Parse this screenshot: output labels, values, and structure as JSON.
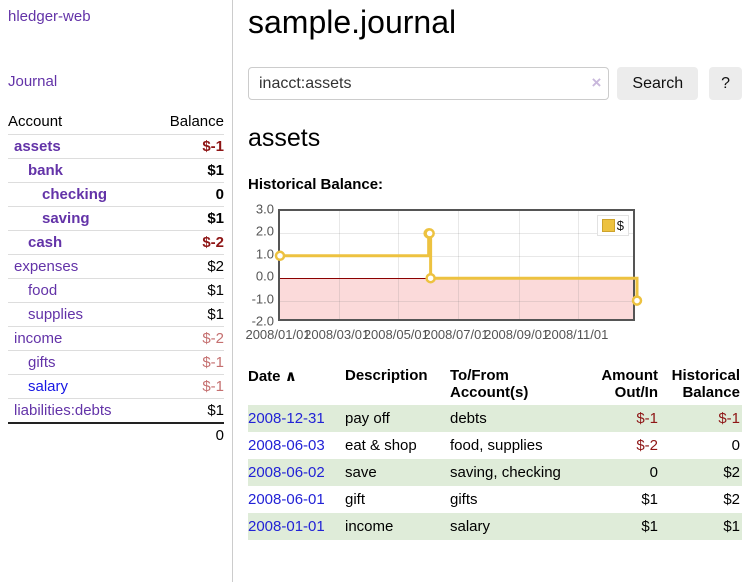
{
  "app": {
    "title": "hledger-web"
  },
  "colors": {
    "link_purple": "#6333a8",
    "link_blue": "#1717e4",
    "negative": "#8e1515",
    "negative_muted": "#c57070",
    "row_green": "#dfecd9",
    "series_yellow": "#edc240",
    "negative_region_pink": "#fbdada",
    "zero_line_red": "#8b0000"
  },
  "sidebar": {
    "journal_link": "Journal",
    "accounts": {
      "header_account": "Account",
      "header_balance": "Balance",
      "rows": [
        {
          "name": "assets",
          "balance": "$-1",
          "depth": "1",
          "bold": "true",
          "tone": "negative"
        },
        {
          "name": "bank",
          "balance": "$1",
          "depth": "2",
          "bold": "true",
          "tone": "normal"
        },
        {
          "name": "checking",
          "balance": "0",
          "depth": "3",
          "bold": "true",
          "tone": "normal"
        },
        {
          "name": "saving",
          "balance": "$1",
          "depth": "3",
          "bold": "true",
          "tone": "normal"
        },
        {
          "name": "cash",
          "balance": "$-2",
          "depth": "2",
          "bold": "true",
          "tone": "negative"
        },
        {
          "name": "expenses",
          "balance": "$2",
          "depth": "1",
          "bold": "false",
          "tone": "normal"
        },
        {
          "name": "food",
          "balance": "$1",
          "depth": "2",
          "bold": "false",
          "tone": "normal"
        },
        {
          "name": "supplies",
          "balance": "$1",
          "depth": "2",
          "bold": "false",
          "tone": "normal"
        },
        {
          "name": "income",
          "balance": "$-2",
          "depth": "1",
          "bold": "false",
          "tone": "negative-muted"
        },
        {
          "name": "gifts",
          "balance": "$-1",
          "depth": "2",
          "bold": "false",
          "tone": "negative-muted"
        },
        {
          "name": "salary",
          "balance": "$-1",
          "depth": "2",
          "bold": "false",
          "tone": "negative-muted",
          "link": "blue"
        },
        {
          "name": "liabilities:debts",
          "balance": "$1",
          "depth": "1",
          "bold": "false",
          "tone": "normal"
        }
      ],
      "total": "0"
    }
  },
  "main": {
    "page_title": "sample.journal",
    "search": {
      "value": "inacct:assets",
      "clear_icon": "×",
      "button_label": "Search",
      "help_label": "?"
    },
    "account_heading": "assets",
    "chart_label": "Historical Balance:"
  },
  "chart_data": {
    "type": "line",
    "title": "Historical Balance",
    "step": true,
    "xlim": [
      "2008-01-01",
      "2008-12-31"
    ],
    "ylim": [
      -2.0,
      3.0
    ],
    "yticks": [
      "3.0",
      "2.0",
      "1.0",
      "0.0",
      "-1.0",
      "-2.0"
    ],
    "xticks": [
      "2008/01/01",
      "2008/03/01",
      "2008/05/01",
      "2008/07/01",
      "2008/09/01",
      "2008/11/01"
    ],
    "series": [
      {
        "name": "$",
        "color": "#edc240",
        "points": [
          [
            "2008-01-01",
            1
          ],
          [
            "2008-06-01",
            2
          ],
          [
            "2008-06-02",
            2
          ],
          [
            "2008-06-03",
            0
          ],
          [
            "2008-12-31",
            -1
          ]
        ]
      }
    ],
    "legend": {
      "label": "$",
      "position": "top-right"
    },
    "grid": true,
    "negative_region_shaded": true
  },
  "register": {
    "headers": {
      "date": "Date",
      "sort_arrow": "∧",
      "description": "Description",
      "accounts_line1": "To/From",
      "accounts_line2": "Account(s)",
      "amount_line1": "Amount",
      "amount_line2": "Out/In",
      "balance_line1": "Historical",
      "balance_line2": "Balance"
    },
    "rows": [
      {
        "date": "2008-12-31",
        "description": "pay off",
        "accounts": "debts",
        "amount": "$-1",
        "balance": "$-1",
        "amount_tone": "negative",
        "balance_tone": "negative",
        "shaded": "true"
      },
      {
        "date": "2008-06-03",
        "description": "eat & shop",
        "accounts": "food, supplies",
        "amount": "$-2",
        "balance": "0",
        "amount_tone": "negative",
        "balance_tone": "normal",
        "shaded": "false"
      },
      {
        "date": "2008-06-02",
        "description": "save",
        "accounts": "saving, checking",
        "amount": "0",
        "balance": "$2",
        "amount_tone": "normal",
        "balance_tone": "normal",
        "shaded": "true"
      },
      {
        "date": "2008-06-01",
        "description": "gift",
        "accounts": "gifts",
        "amount": "$1",
        "balance": "$2",
        "amount_tone": "normal",
        "balance_tone": "normal",
        "shaded": "false"
      },
      {
        "date": "2008-01-01",
        "description": "income",
        "accounts": "salary",
        "amount": "$1",
        "balance": "$1",
        "amount_tone": "normal",
        "balance_tone": "normal",
        "shaded": "true"
      }
    ]
  }
}
